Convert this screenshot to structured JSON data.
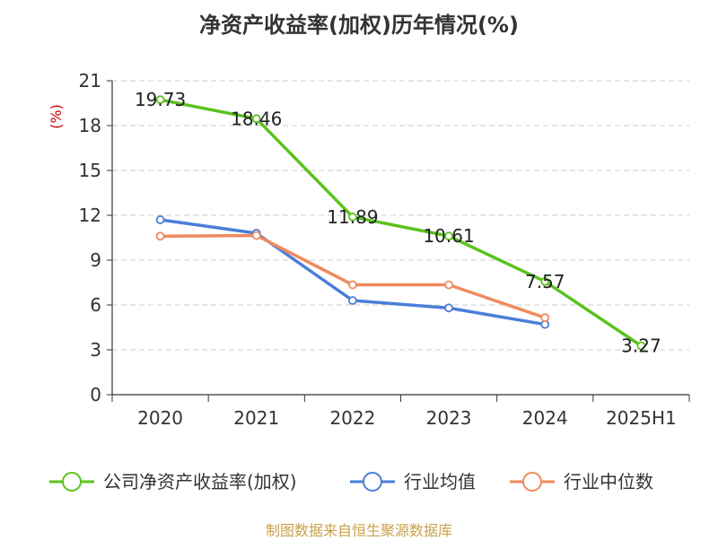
{
  "chart_data": {
    "type": "line",
    "title": "净资产收益率(加权)历年情况(%)",
    "ylabel": "(%)",
    "ylim": [
      0,
      21
    ],
    "yticks": [
      0,
      3,
      6,
      9,
      12,
      15,
      18,
      21
    ],
    "categories": [
      "2020",
      "2021",
      "2022",
      "2023",
      "2024",
      "2025H1"
    ],
    "grid": "horizontal-dashed",
    "legend_position": "bottom",
    "series": [
      {
        "name": "公司净资产收益率(加权)",
        "color": "#5bc21e",
        "values": [
          19.73,
          18.46,
          11.89,
          10.61,
          7.57,
          3.27
        ],
        "labels": [
          "19.73",
          "18.46",
          "11.89",
          "10.61",
          "7.57",
          "3.27"
        ]
      },
      {
        "name": "行业均值",
        "color": "#4a7fd8",
        "values": [
          11.7,
          10.8,
          6.3,
          5.8,
          4.7,
          null
        ]
      },
      {
        "name": "行业中位数",
        "color": "#f08a5d",
        "values": [
          10.6,
          10.65,
          7.35,
          7.35,
          5.15,
          null
        ]
      }
    ]
  },
  "footer": {
    "source": "制图数据来自恒生聚源数据库"
  }
}
